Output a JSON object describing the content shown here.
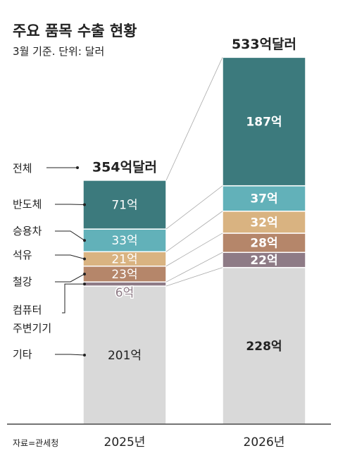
{
  "chart_data": {
    "type": "stacked-bar",
    "title": "주요 품목 수출 현황",
    "subtitle": "3월 기준. 단위: 달러",
    "source": "자료=관세청",
    "categories": [
      "2025년",
      "2026년"
    ],
    "total_name": "전체",
    "totals": [
      354,
      533
    ],
    "total_labels": [
      "354억달러",
      "533억달러"
    ],
    "series": [
      {
        "name": "기타",
        "color": "#d9d9d9",
        "values": [
          201,
          228
        ],
        "value_labels": [
          "201억",
          "228억"
        ]
      },
      {
        "name": "컴퓨터\n주변기기",
        "color": "#8e7b86",
        "values": [
          6,
          22
        ],
        "value_labels": [
          "6억",
          "22억"
        ]
      },
      {
        "name": "철강",
        "color": "#b5866a",
        "values": [
          23,
          28
        ],
        "value_labels": [
          "23억",
          "28억"
        ]
      },
      {
        "name": "석유",
        "color": "#d9b381",
        "values": [
          21,
          32
        ],
        "value_labels": [
          "21억",
          "32억"
        ]
      },
      {
        "name": "승용차",
        "color": "#62b1b9",
        "values": [
          33,
          37
        ],
        "value_labels": [
          "33억",
          "37억"
        ]
      },
      {
        "name": "반도체",
        "color": "#3c7a7d",
        "values": [
          71,
          187
        ],
        "value_labels": [
          "71억",
          "187억"
        ]
      }
    ],
    "ylim": [
      0,
      550
    ]
  }
}
